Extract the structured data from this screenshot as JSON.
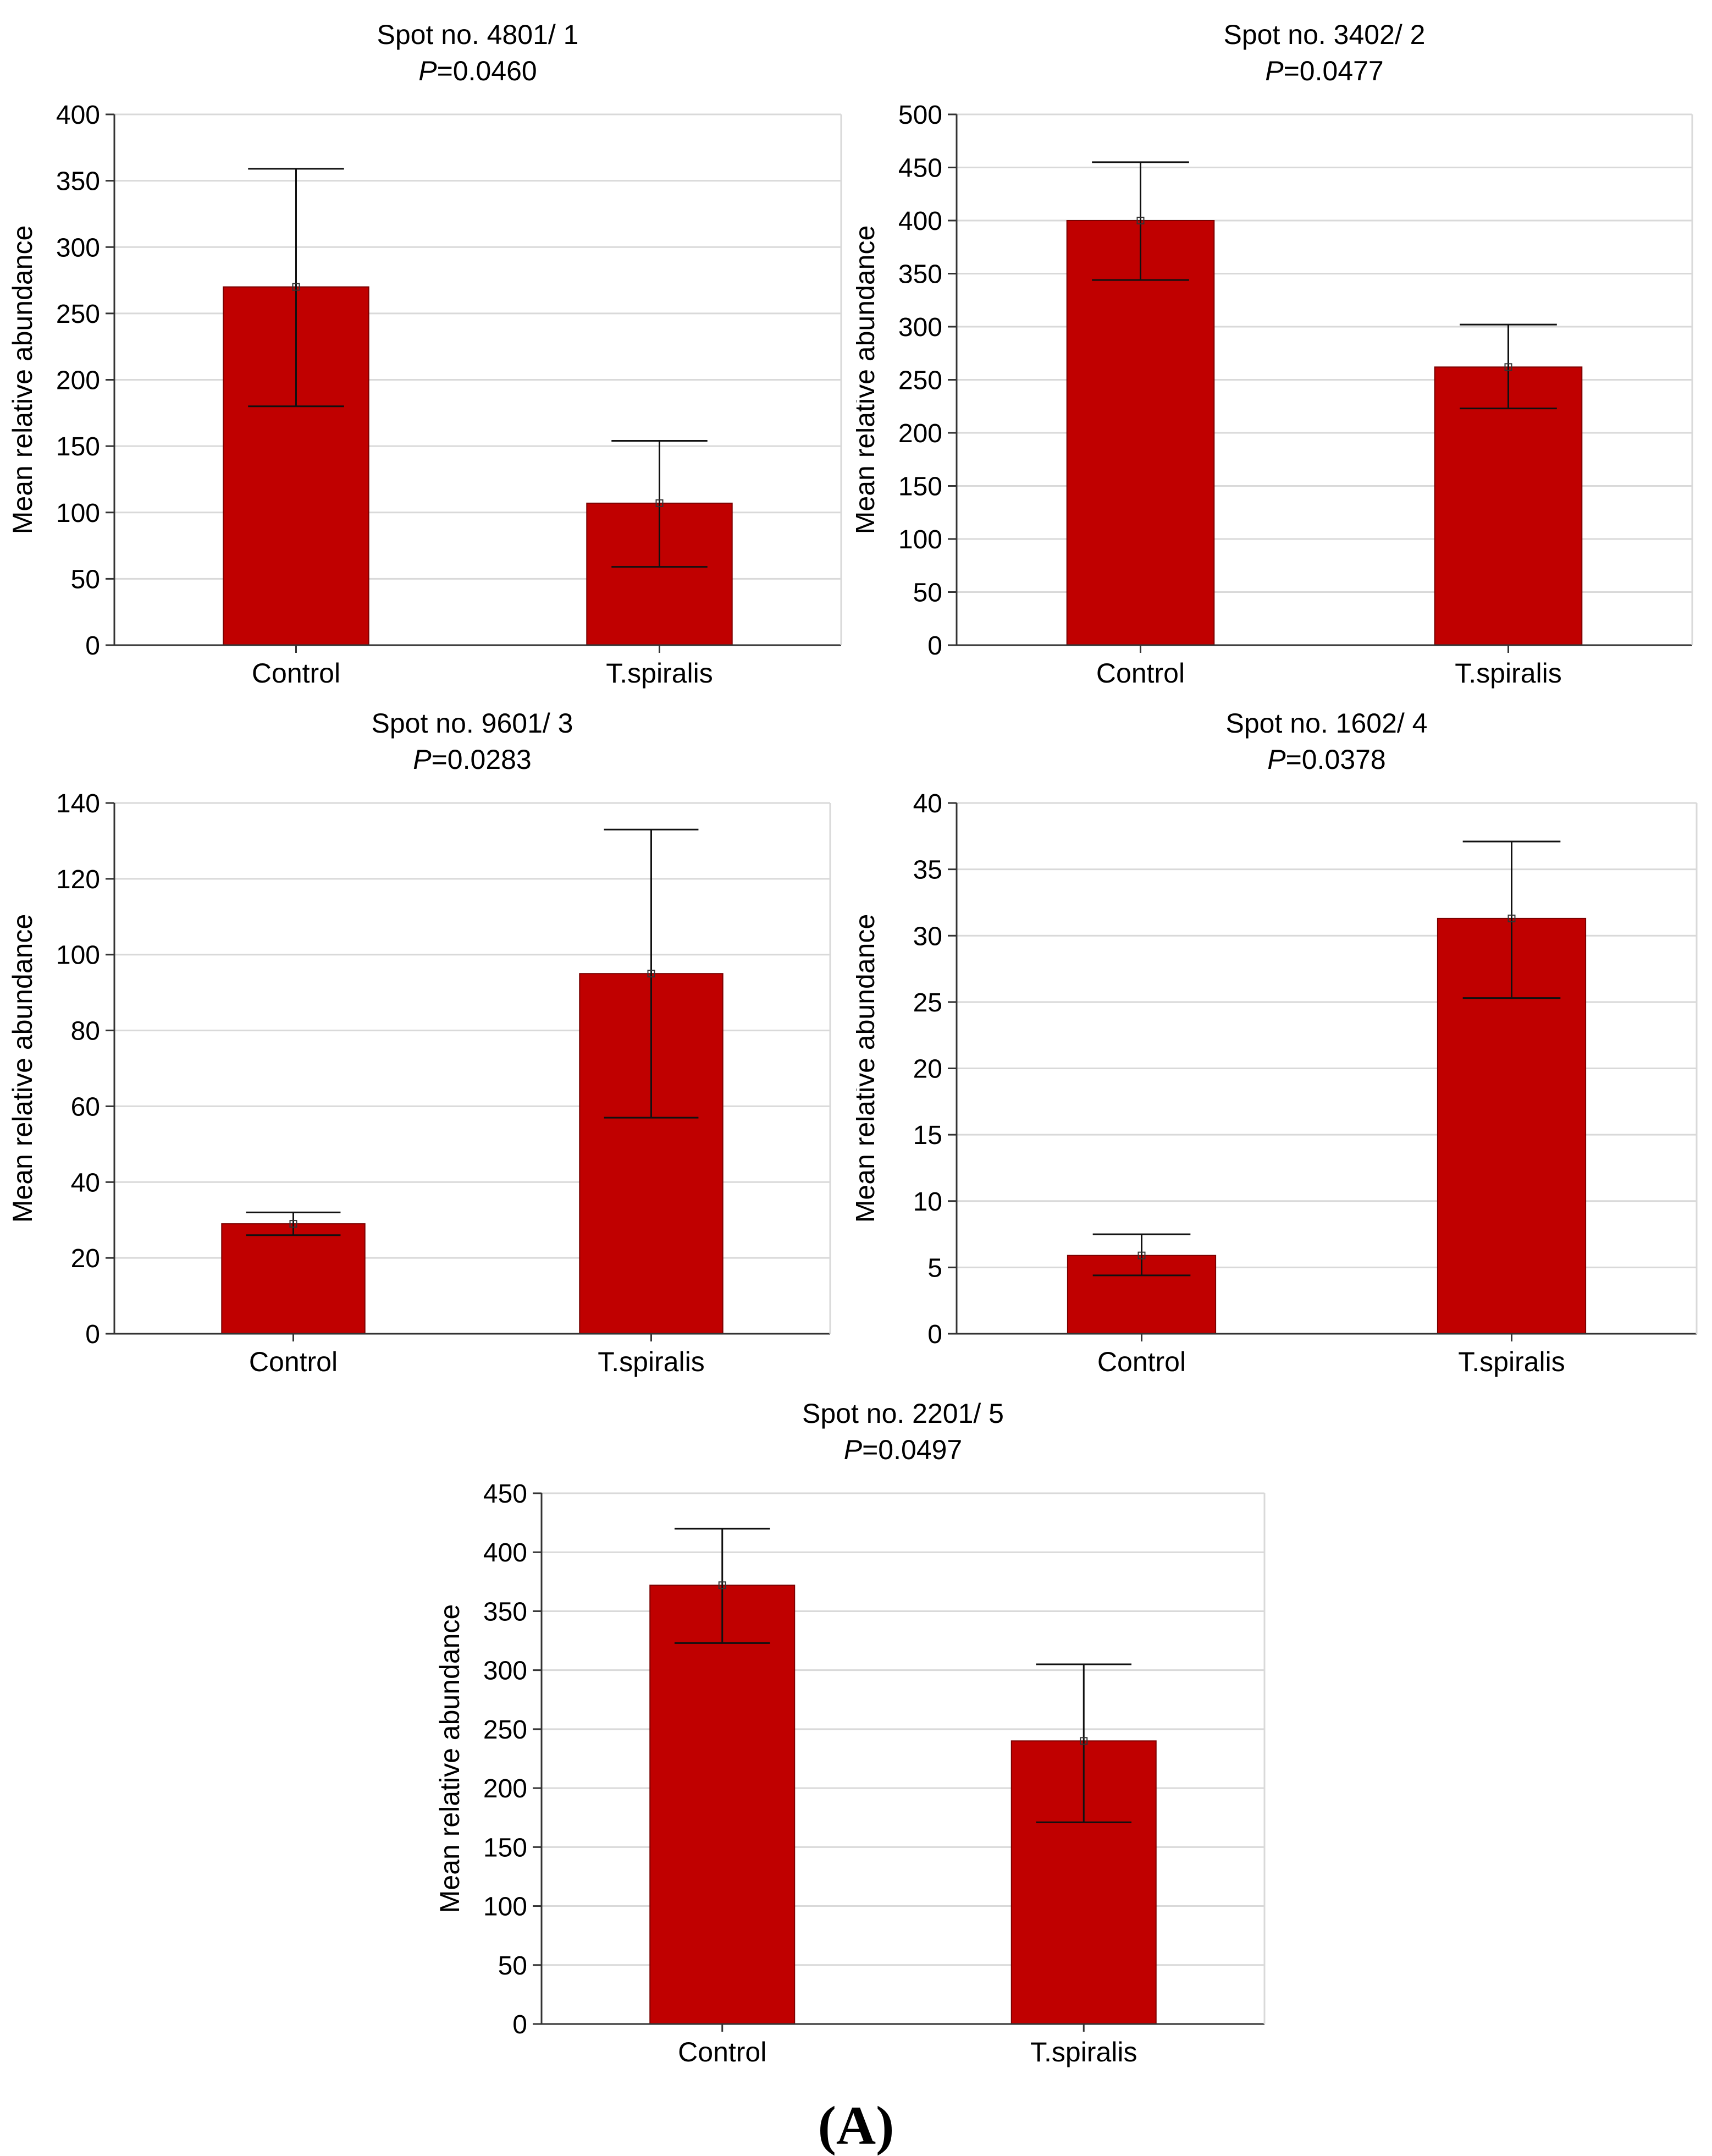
{
  "figure": {
    "label": "(A)",
    "bar_color": "#C00000",
    "grid_color": "#D9D9D9"
  },
  "chart_data": [
    {
      "type": "bar",
      "title": "Spot no. 4801/ 1",
      "p_prefix": "P",
      "p_value": "=0.0460",
      "ylabel": "Mean relative abundance",
      "xlabel": "",
      "categories": [
        "Control",
        "T.spiralis"
      ],
      "values": [
        270,
        107
      ],
      "error_lower": [
        180,
        59
      ],
      "error_upper": [
        359,
        154
      ],
      "ylim": [
        0,
        400
      ],
      "yticks": [
        0,
        50,
        100,
        150,
        200,
        250,
        300,
        350,
        400
      ],
      "grid": true
    },
    {
      "type": "bar",
      "title": "Spot no. 3402/ 2",
      "p_prefix": "P",
      "p_value": "=0.0477",
      "ylabel": "Mean relative abundance",
      "xlabel": "",
      "categories": [
        "Control",
        "T.spiralis"
      ],
      "values": [
        400,
        262
      ],
      "error_lower": [
        344,
        223
      ],
      "error_upper": [
        455,
        302
      ],
      "ylim": [
        0,
        500
      ],
      "yticks": [
        0,
        50,
        100,
        150,
        200,
        250,
        300,
        350,
        400,
        450,
        500
      ],
      "grid": true
    },
    {
      "type": "bar",
      "title": "Spot no. 9601/ 3",
      "p_prefix": "P",
      "p_value": "=0.0283",
      "ylabel": "Mean relative abundance",
      "xlabel": "",
      "categories": [
        "Control",
        "T.spiralis"
      ],
      "values": [
        29,
        95
      ],
      "error_lower": [
        26,
        57
      ],
      "error_upper": [
        32,
        133
      ],
      "ylim": [
        0,
        140
      ],
      "yticks": [
        0,
        20,
        40,
        60,
        80,
        100,
        120,
        140
      ],
      "grid": true
    },
    {
      "type": "bar",
      "title": "Spot no. 1602/ 4",
      "p_prefix": "P",
      "p_value": "=0.0378",
      "ylabel": "Mean relative abundance",
      "xlabel": "",
      "categories": [
        "Control",
        "T.spiralis"
      ],
      "values": [
        5.9,
        31.3
      ],
      "error_lower": [
        4.4,
        25.3
      ],
      "error_upper": [
        7.5,
        37.1
      ],
      "ylim": [
        0,
        40
      ],
      "yticks": [
        0,
        5,
        10,
        15,
        20,
        25,
        30,
        35,
        40
      ],
      "grid": true
    },
    {
      "type": "bar",
      "title": "Spot no. 2201/ 5",
      "p_prefix": "P",
      "p_value": "=0.0497",
      "ylabel": "Mean relative abundance",
      "xlabel": "",
      "categories": [
        "Control",
        "T.spiralis"
      ],
      "values": [
        372,
        240
      ],
      "error_lower": [
        323,
        171
      ],
      "error_upper": [
        420,
        305
      ],
      "ylim": [
        0,
        450
      ],
      "yticks": [
        0,
        50,
        100,
        150,
        200,
        250,
        300,
        350,
        400,
        450
      ],
      "grid": true
    }
  ]
}
